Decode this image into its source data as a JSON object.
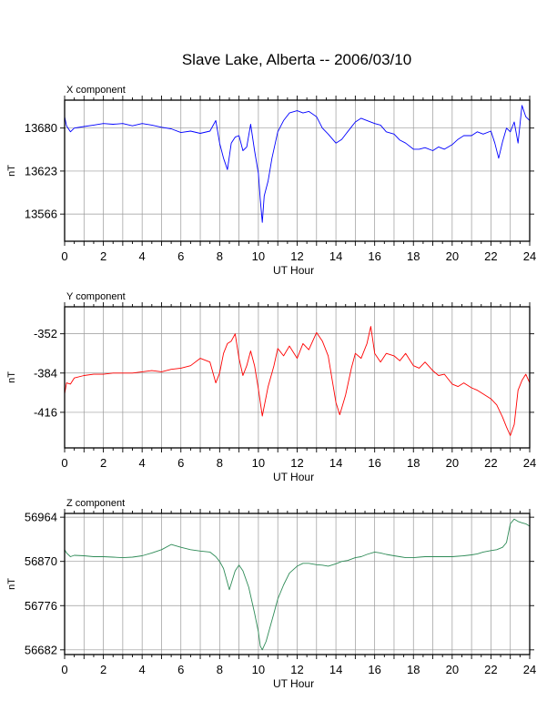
{
  "title": "Slave Lake, Alberta -- 2006/03/10",
  "chart_data": [
    {
      "type": "line",
      "panel_label": "X component",
      "xlabel": "UT Hour",
      "ylabel": "nT",
      "xlim": [
        0,
        24
      ],
      "ylim": [
        13530,
        13717
      ],
      "xticks": [
        0,
        2,
        4,
        6,
        8,
        10,
        12,
        14,
        16,
        18,
        20,
        22,
        24
      ],
      "yticks": [
        13566,
        13623,
        13680
      ],
      "grid": true,
      "color": "#0000ff",
      "x": [
        0,
        0.1,
        0.3,
        0.5,
        1,
        1.5,
        2,
        2.5,
        3,
        3.5,
        4,
        4.5,
        5,
        5.5,
        6,
        6.5,
        7,
        7.5,
        7.8,
        8,
        8.2,
        8.4,
        8.6,
        8.8,
        9,
        9.2,
        9.4,
        9.6,
        9.8,
        10,
        10.1,
        10.2,
        10.3,
        10.5,
        10.7,
        11,
        11.3,
        11.6,
        12,
        12.3,
        12.6,
        13,
        13.3,
        13.6,
        14,
        14.3,
        14.6,
        15,
        15.3,
        15.6,
        16,
        16.3,
        16.6,
        17,
        17.3,
        17.6,
        18,
        18.3,
        18.6,
        19,
        19.3,
        19.6,
        20,
        20.3,
        20.6,
        21,
        21.3,
        21.6,
        22,
        22.2,
        22.4,
        22.6,
        22.8,
        23,
        23.2,
        23.4,
        23.6,
        23.8,
        24
      ],
      "y": [
        13695,
        13683,
        13675,
        13680,
        13682,
        13684,
        13686,
        13685,
        13686,
        13683,
        13686,
        13684,
        13681,
        13679,
        13674,
        13676,
        13673,
        13676,
        13690,
        13660,
        13640,
        13625,
        13660,
        13668,
        13670,
        13650,
        13655,
        13685,
        13650,
        13620,
        13585,
        13555,
        13590,
        13610,
        13640,
        13675,
        13690,
        13700,
        13703,
        13700,
        13702,
        13695,
        13680,
        13672,
        13660,
        13665,
        13675,
        13688,
        13693,
        13690,
        13686,
        13684,
        13675,
        13672,
        13664,
        13660,
        13652,
        13652,
        13654,
        13650,
        13655,
        13652,
        13658,
        13665,
        13670,
        13670,
        13675,
        13672,
        13676,
        13660,
        13640,
        13662,
        13680,
        13675,
        13688,
        13660,
        13710,
        13695,
        13690
      ]
    },
    {
      "type": "line",
      "panel_label": "Y component",
      "xlabel": "UT Hour",
      "ylabel": "nT",
      "xlim": [
        0,
        24
      ],
      "ylim": [
        -445,
        -330
      ],
      "xticks": [
        0,
        2,
        4,
        6,
        8,
        10,
        12,
        14,
        16,
        18,
        20,
        22,
        24
      ],
      "yticks": [
        -416,
        -384,
        -352
      ],
      "grid": true,
      "color": "#ff0000",
      "x": [
        0,
        0.1,
        0.3,
        0.5,
        1,
        1.5,
        2,
        2.5,
        3,
        3.5,
        4,
        4.5,
        5,
        5.5,
        6,
        6.5,
        7,
        7.5,
        7.8,
        8,
        8.2,
        8.4,
        8.6,
        8.8,
        9,
        9.2,
        9.4,
        9.6,
        9.8,
        10,
        10.2,
        10.5,
        10.8,
        11,
        11.3,
        11.6,
        12,
        12.3,
        12.6,
        13,
        13.3,
        13.6,
        14,
        14.2,
        14.5,
        14.8,
        15,
        15.3,
        15.6,
        15.8,
        16,
        16.3,
        16.6,
        17,
        17.3,
        17.6,
        18,
        18.3,
        18.6,
        19,
        19.3,
        19.6,
        20,
        20.3,
        20.6,
        21,
        21.3,
        21.6,
        22,
        22.3,
        22.6,
        22.8,
        23,
        23.2,
        23.4,
        23.6,
        23.8,
        24
      ],
      "y": [
        -401,
        -392,
        -393,
        -388,
        -386,
        -385,
        -385,
        -384,
        -384,
        -384,
        -383,
        -382,
        -383,
        -381,
        -380,
        -378,
        -372,
        -375,
        -392,
        -384,
        -368,
        -360,
        -358,
        -352,
        -372,
        -386,
        -378,
        -366,
        -378,
        -397,
        -419,
        -395,
        -378,
        -364,
        -370,
        -362,
        -372,
        -360,
        -365,
        -351,
        -358,
        -370,
        -408,
        -418,
        -402,
        -380,
        -368,
        -372,
        -360,
        -346,
        -368,
        -375,
        -368,
        -370,
        -374,
        -368,
        -378,
        -380,
        -375,
        -382,
        -386,
        -385,
        -393,
        -395,
        -392,
        -396,
        -398,
        -401,
        -405,
        -410,
        -420,
        -428,
        -435,
        -426,
        -398,
        -390,
        -385,
        -392
      ]
    },
    {
      "type": "line",
      "panel_label": "Z component",
      "xlabel": "UT Hour",
      "ylabel": "nT",
      "xlim": [
        0,
        24
      ],
      "ylim": [
        56672,
        56972
      ],
      "xticks": [
        0,
        2,
        4,
        6,
        8,
        10,
        12,
        14,
        16,
        18,
        20,
        22,
        24
      ],
      "yticks": [
        56682,
        56776,
        56870,
        56964
      ],
      "grid": true,
      "color": "#2e8b57",
      "x": [
        0,
        0.1,
        0.3,
        0.5,
        1,
        1.5,
        2,
        2.5,
        3,
        3.5,
        4,
        4.5,
        5,
        5.5,
        6,
        6.5,
        7,
        7.5,
        7.8,
        8,
        8.2,
        8.5,
        8.8,
        9,
        9.2,
        9.5,
        9.8,
        10,
        10.1,
        10.2,
        10.4,
        10.6,
        10.8,
        11,
        11.3,
        11.6,
        12,
        12.3,
        12.6,
        13,
        13.3,
        13.6,
        14,
        14.3,
        14.6,
        15,
        15.3,
        15.6,
        16,
        16.3,
        16.6,
        17,
        17.3,
        17.6,
        18,
        18.3,
        18.6,
        19,
        19.3,
        19.6,
        20,
        20.3,
        20.6,
        21,
        21.3,
        21.6,
        22,
        22.3,
        22.6,
        22.8,
        23,
        23.2,
        23.4,
        23.6,
        23.8,
        24
      ],
      "y": [
        56895,
        56888,
        56880,
        56883,
        56882,
        56880,
        56880,
        56879,
        56878,
        56879,
        56882,
        56888,
        56895,
        56906,
        56900,
        56895,
        56892,
        56890,
        56880,
        56870,
        56855,
        56810,
        56850,
        56862,
        56850,
        56815,
        56760,
        56720,
        56690,
        56682,
        56700,
        56730,
        56760,
        56790,
        56820,
        56845,
        56860,
        56866,
        56866,
        56863,
        56862,
        56860,
        56865,
        56870,
        56872,
        56878,
        56880,
        56885,
        56890,
        56888,
        56885,
        56882,
        56880,
        56878,
        56878,
        56879,
        56880,
        56880,
        56880,
        56880,
        56880,
        56881,
        56882,
        56884,
        56886,
        56890,
        56893,
        56895,
        56900,
        56910,
        56950,
        56960,
        56955,
        56952,
        56950,
        56945
      ]
    }
  ]
}
